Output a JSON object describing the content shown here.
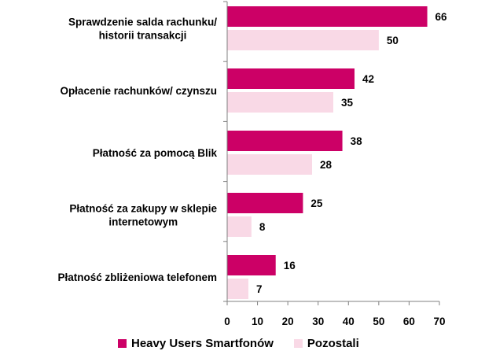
{
  "chart_data": {
    "type": "bar",
    "orientation": "horizontal",
    "categories": [
      [
        "Sprawdzenie salda rachunku/",
        "historii transakcji"
      ],
      [
        "Opłacenie rachunków/ czynszu"
      ],
      [
        "Płatność za pomocą Blik"
      ],
      [
        "Płatność za zakupy w sklepie",
        "internetowym"
      ],
      [
        "Płatność zbliżeniowa telefonem"
      ]
    ],
    "series": [
      {
        "name": "Heavy Users Smartfonów",
        "color": "#cc0066",
        "values": [
          66,
          42,
          38,
          25,
          16
        ]
      },
      {
        "name": "Pozostali",
        "color": "#f9d9e6",
        "values": [
          50,
          35,
          28,
          8,
          7
        ]
      }
    ],
    "xlim": [
      0,
      70
    ],
    "xticks": [
      0,
      10,
      20,
      30,
      40,
      50,
      60,
      70
    ],
    "grid": false,
    "legend_position": "bottom"
  }
}
